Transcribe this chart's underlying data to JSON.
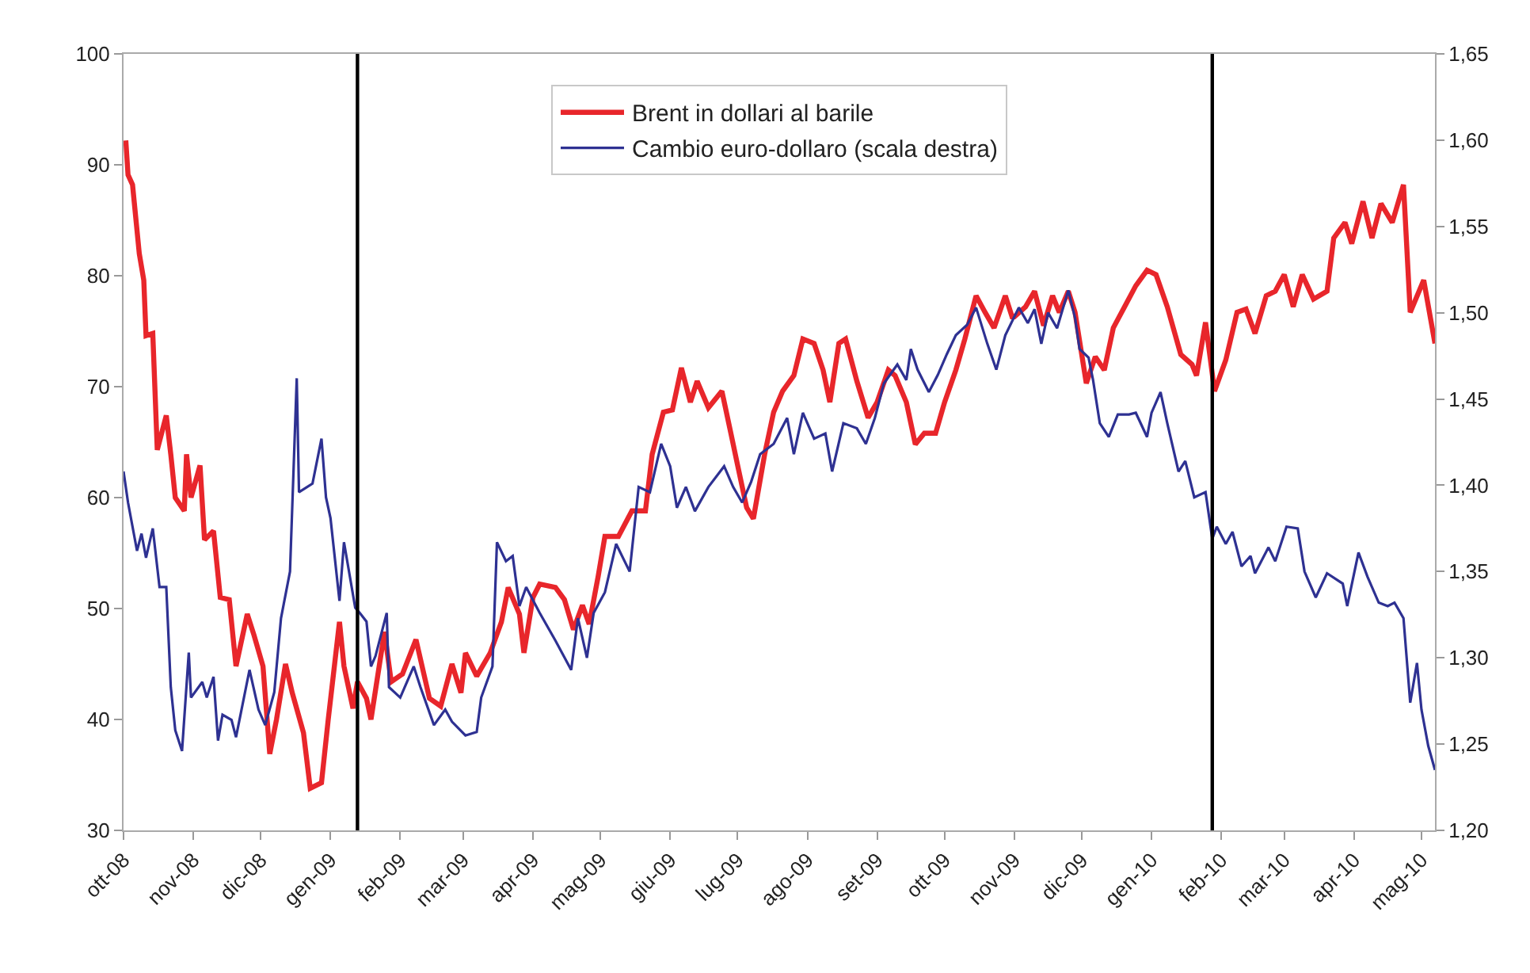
{
  "chart_data": {
    "type": "line",
    "xlim": [
      "2008-10-01",
      "2010-05-07"
    ],
    "xticks": [
      {
        "value": "2008-10-01",
        "label": "ott-08"
      },
      {
        "value": "2008-11-01",
        "label": "nov-08"
      },
      {
        "value": "2008-12-01",
        "label": "dic-08"
      },
      {
        "value": "2009-01-01",
        "label": "gen-09"
      },
      {
        "value": "2009-02-01",
        "label": "feb-09"
      },
      {
        "value": "2009-03-01",
        "label": "mar-09"
      },
      {
        "value": "2009-04-01",
        "label": "apr-09"
      },
      {
        "value": "2009-05-01",
        "label": "mag-09"
      },
      {
        "value": "2009-06-01",
        "label": "giu-09"
      },
      {
        "value": "2009-07-01",
        "label": "lug-09"
      },
      {
        "value": "2009-08-01",
        "label": "ago-09"
      },
      {
        "value": "2009-09-01",
        "label": "set-09"
      },
      {
        "value": "2009-10-01",
        "label": "ott-09"
      },
      {
        "value": "2009-11-01",
        "label": "nov-09"
      },
      {
        "value": "2009-12-01",
        "label": "dic-09"
      },
      {
        "value": "2010-01-01",
        "label": "gen-10"
      },
      {
        "value": "2010-02-01",
        "label": "feb-10"
      },
      {
        "value": "2010-03-01",
        "label": "mar-10"
      },
      {
        "value": "2010-04-01",
        "label": "apr-10"
      },
      {
        "value": "2010-05-01",
        "label": "mag-10"
      }
    ],
    "ylim": [
      30,
      100
    ],
    "yticks": [
      30,
      40,
      50,
      60,
      70,
      80,
      90,
      100
    ],
    "y2lim": [
      1.2,
      1.65
    ],
    "y2ticks": [
      {
        "value": 1.2,
        "label": "1,20"
      },
      {
        "value": 1.25,
        "label": "1,25"
      },
      {
        "value": 1.3,
        "label": "1,30"
      },
      {
        "value": 1.35,
        "label": "1,35"
      },
      {
        "value": 1.4,
        "label": "1,40"
      },
      {
        "value": 1.45,
        "label": "1,45"
      },
      {
        "value": 1.5,
        "label": "1,50"
      },
      {
        "value": 1.55,
        "label": "1,55"
      },
      {
        "value": 1.6,
        "label": "1,60"
      },
      {
        "value": 1.65,
        "label": "1,65"
      }
    ],
    "grid": false,
    "legend": "top",
    "marker": "none",
    "line_style": "solid",
    "ref_lines": [
      {
        "axis": "x",
        "value": "2009-01-13",
        "label": null,
        "color": "#000000"
      },
      {
        "axis": "x",
        "value": "2010-01-28",
        "label": null,
        "color": "#000000"
      }
    ],
    "series": [
      {
        "name": "Brent in dollari al barile",
        "color": "#e8262b",
        "x": [
          "2008-10-02",
          "2008-10-03",
          "2008-10-05",
          "2008-10-08",
          "2008-10-10",
          "2008-10-11",
          "2008-10-14",
          "2008-10-16",
          "2008-10-20",
          "2008-10-22",
          "2008-10-24",
          "2008-10-28",
          "2008-10-29",
          "2008-10-31",
          "2008-11-04",
          "2008-11-06",
          "2008-11-10",
          "2008-11-13",
          "2008-11-17",
          "2008-11-20",
          "2008-11-25",
          "2008-11-28",
          "2008-12-02",
          "2008-12-05",
          "2008-12-08",
          "2008-12-12",
          "2008-12-15",
          "2008-12-20",
          "2008-12-23",
          "2008-12-28",
          "2008-12-31",
          "2009-01-05",
          "2009-01-07",
          "2009-01-11",
          "2009-01-13",
          "2009-01-17",
          "2009-01-19",
          "2009-01-25",
          "2009-01-28",
          "2009-02-02",
          "2009-02-08",
          "2009-02-14",
          "2009-02-19",
          "2009-02-24",
          "2009-02-28",
          "2009-03-02",
          "2009-03-07",
          "2009-03-13",
          "2009-03-18",
          "2009-03-21",
          "2009-03-26",
          "2009-03-28",
          "2009-04-01",
          "2009-04-04",
          "2009-04-11",
          "2009-04-15",
          "2009-04-19",
          "2009-04-23",
          "2009-04-26",
          "2009-04-30",
          "2009-05-03",
          "2009-05-09",
          "2009-05-15",
          "2009-05-21",
          "2009-05-24",
          "2009-05-29",
          "2009-06-02",
          "2009-06-06",
          "2009-06-10",
          "2009-06-13",
          "2009-06-18",
          "2009-06-24",
          "2009-06-28",
          "2009-07-01",
          "2009-07-05",
          "2009-07-08",
          "2009-07-13",
          "2009-07-17",
          "2009-07-21",
          "2009-07-26",
          "2009-07-30",
          "2009-08-04",
          "2009-08-08",
          "2009-08-11",
          "2009-08-15",
          "2009-08-18",
          "2009-08-23",
          "2009-08-28",
          "2009-09-01",
          "2009-09-06",
          "2009-09-09",
          "2009-09-14",
          "2009-09-18",
          "2009-09-22",
          "2009-09-27",
          "2009-10-01",
          "2009-10-06",
          "2009-10-10",
          "2009-10-15",
          "2009-10-19",
          "2009-10-23",
          "2009-10-28",
          "2009-10-31",
          "2009-11-01",
          "2009-11-06",
          "2009-11-10",
          "2009-11-14",
          "2009-11-18",
          "2009-11-21",
          "2009-11-25",
          "2009-11-28",
          "2009-12-03",
          "2009-12-07",
          "2009-12-11",
          "2009-12-15",
          "2009-12-20",
          "2009-12-25",
          "2009-12-30",
          "2010-01-03",
          "2010-01-08",
          "2010-01-14",
          "2010-01-19",
          "2010-01-21",
          "2010-01-25",
          "2010-01-29",
          "2010-02-03",
          "2010-02-08",
          "2010-02-12",
          "2010-02-16",
          "2010-02-21",
          "2010-02-25",
          "2010-03-01",
          "2010-03-05",
          "2010-03-09",
          "2010-03-14",
          "2010-03-20",
          "2010-03-23",
          "2010-03-28",
          "2010-03-31",
          "2010-04-05",
          "2010-04-09",
          "2010-04-13",
          "2010-04-18",
          "2010-04-23",
          "2010-04-26",
          "2010-05-02",
          "2010-05-07"
        ],
        "values": [
          92.2,
          89.1,
          88.2,
          82,
          79.6,
          74.6,
          74.8,
          64.3,
          67.4,
          63.9,
          60,
          58.8,
          63.9,
          60,
          62.9,
          56.2,
          57,
          51,
          50.8,
          44.8,
          49.5,
          47.6,
          44.8,
          36.9,
          40,
          45,
          42.4,
          38.8,
          33.8,
          34.3,
          40,
          48.8,
          44.8,
          41,
          43.4,
          41.9,
          40,
          47.9,
          43.4,
          44.1,
          47.2,
          41.9,
          41.2,
          45,
          42.4,
          46,
          43.9,
          46,
          48.8,
          51.9,
          49.5,
          46,
          51,
          52.2,
          51.9,
          50.8,
          48.1,
          50.3,
          48.6,
          52.9,
          56.5,
          56.5,
          58.8,
          58.8,
          63.9,
          67.7,
          67.9,
          71.7,
          68.6,
          70.5,
          68.1,
          69.6,
          65.8,
          62.9,
          59.1,
          58.1,
          63.9,
          67.7,
          69.6,
          71,
          74.3,
          73.9,
          71.5,
          68.6,
          73.9,
          74.3,
          70.5,
          67.2,
          68.6,
          71.5,
          71,
          68.6,
          64.8,
          65.8,
          65.8,
          68.6,
          71.5,
          74.3,
          78.2,
          76.7,
          75.3,
          78.2,
          76.3,
          76.3,
          77.2,
          78.6,
          75.5,
          78.2,
          76.7,
          78.6,
          76.7,
          70.3,
          72.7,
          71.5,
          75.3,
          77.2,
          79.1,
          80.5,
          80.1,
          77.2,
          72.9,
          72,
          71,
          75.8,
          69.6,
          72.4,
          76.7,
          77,
          74.8,
          78.2,
          78.6,
          80.1,
          77.2,
          80.1,
          77.9,
          78.6,
          83.4,
          84.8,
          82.9,
          86.7,
          83.4,
          86.5,
          84.8,
          88.2,
          76.7,
          79.6,
          73.9
        ]
      },
      {
        "name": "Cambio euro-dollaro (scala destra)",
        "color": "#2e3192",
        "axis": "y2",
        "x": [
          "2008-10-01",
          "2008-10-03",
          "2008-10-07",
          "2008-10-09",
          "2008-10-11",
          "2008-10-14",
          "2008-10-17",
          "2008-10-20",
          "2008-10-22",
          "2008-10-24",
          "2008-10-27",
          "2008-10-30",
          "2008-10-31",
          "2008-11-05",
          "2008-11-07",
          "2008-11-10",
          "2008-11-12",
          "2008-11-14",
          "2008-11-18",
          "2008-11-20",
          "2008-11-26",
          "2008-11-30",
          "2008-12-03",
          "2008-12-07",
          "2008-12-10",
          "2008-12-14",
          "2008-12-17",
          "2008-12-18",
          "2008-12-24",
          "2008-12-28",
          "2008-12-30",
          "2009-01-01",
          "2009-01-05",
          "2009-01-07",
          "2009-01-12",
          "2009-01-14",
          "2009-01-17",
          "2009-01-19",
          "2009-01-21",
          "2009-01-26",
          "2009-01-27",
          "2009-02-01",
          "2009-02-07",
          "2009-02-10",
          "2009-02-16",
          "2009-02-21",
          "2009-02-24",
          "2009-03-02",
          "2009-03-07",
          "2009-03-09",
          "2009-03-14",
          "2009-03-16",
          "2009-03-20",
          "2009-03-23",
          "2009-03-26",
          "2009-03-29",
          "2009-04-04",
          "2009-04-11",
          "2009-04-18",
          "2009-04-21",
          "2009-04-25",
          "2009-04-28",
          "2009-05-03",
          "2009-05-08",
          "2009-05-14",
          "2009-05-18",
          "2009-05-23",
          "2009-05-28",
          "2009-06-01",
          "2009-06-04",
          "2009-06-08",
          "2009-06-12",
          "2009-06-18",
          "2009-06-25",
          "2009-06-29",
          "2009-07-03",
          "2009-07-07",
          "2009-07-11",
          "2009-07-17",
          "2009-07-23",
          "2009-07-26",
          "2009-07-30",
          "2009-08-04",
          "2009-08-09",
          "2009-08-12",
          "2009-08-17",
          "2009-08-23",
          "2009-08-27",
          "2009-08-31",
          "2009-09-04",
          "2009-09-10",
          "2009-09-14",
          "2009-09-16",
          "2009-09-19",
          "2009-09-24",
          "2009-09-28",
          "2009-10-02",
          "2009-10-06",
          "2009-10-11",
          "2009-10-15",
          "2009-10-20",
          "2009-10-24",
          "2009-10-28",
          "2009-11-03",
          "2009-11-07",
          "2009-11-10",
          "2009-11-13",
          "2009-11-16",
          "2009-11-20",
          "2009-11-25",
          "2009-11-28",
          "2009-11-30",
          "2009-12-04",
          "2009-12-06",
          "2009-12-09",
          "2009-12-13",
          "2009-12-17",
          "2009-12-22",
          "2009-12-25",
          "2009-12-30",
          "2010-01-01",
          "2010-01-05",
          "2010-01-08",
          "2010-01-13",
          "2010-01-16",
          "2010-01-20",
          "2010-01-25",
          "2010-01-28",
          "2010-01-30",
          "2010-02-03",
          "2010-02-06",
          "2010-02-10",
          "2010-02-14",
          "2010-02-16",
          "2010-02-22",
          "2010-02-25",
          "2010-03-02",
          "2010-03-07",
          "2010-03-10",
          "2010-03-15",
          "2010-03-20",
          "2010-03-27",
          "2010-03-29",
          "2010-04-03",
          "2010-04-07",
          "2010-04-12",
          "2010-04-16",
          "2010-04-19",
          "2010-04-23",
          "2010-04-26",
          "2010-04-29",
          "2010-05-01",
          "2010-05-04",
          "2010-05-07"
        ],
        "values": [
          1.408,
          1.39,
          1.362,
          1.372,
          1.358,
          1.375,
          1.341,
          1.341,
          1.283,
          1.258,
          1.246,
          1.303,
          1.277,
          1.286,
          1.277,
          1.289,
          1.252,
          1.267,
          1.264,
          1.254,
          1.293,
          1.27,
          1.261,
          1.28,
          1.323,
          1.35,
          1.462,
          1.396,
          1.401,
          1.427,
          1.393,
          1.381,
          1.333,
          1.367,
          1.329,
          1.326,
          1.321,
          1.295,
          1.301,
          1.326,
          1.283,
          1.277,
          1.295,
          1.283,
          1.261,
          1.27,
          1.263,
          1.255,
          1.257,
          1.277,
          1.295,
          1.367,
          1.356,
          1.359,
          1.33,
          1.341,
          1.326,
          1.31,
          1.293,
          1.323,
          1.3,
          1.326,
          1.338,
          1.366,
          1.35,
          1.399,
          1.396,
          1.424,
          1.411,
          1.387,
          1.399,
          1.385,
          1.399,
          1.411,
          1.399,
          1.39,
          1.402,
          1.418,
          1.424,
          1.439,
          1.418,
          1.442,
          1.427,
          1.43,
          1.408,
          1.436,
          1.433,
          1.424,
          1.439,
          1.459,
          1.47,
          1.461,
          1.479,
          1.467,
          1.454,
          1.464,
          1.476,
          1.487,
          1.493,
          1.503,
          1.482,
          1.467,
          1.487,
          1.503,
          1.494,
          1.502,
          1.482,
          1.5,
          1.491,
          1.513,
          1.497,
          1.479,
          1.474,
          1.461,
          1.436,
          1.428,
          1.441,
          1.441,
          1.442,
          1.428,
          1.442,
          1.454,
          1.436,
          1.408,
          1.414,
          1.393,
          1.396,
          1.369,
          1.376,
          1.366,
          1.373,
          1.353,
          1.359,
          1.349,
          1.364,
          1.356,
          1.376,
          1.375,
          1.35,
          1.335,
          1.349,
          1.343,
          1.33,
          1.361,
          1.347,
          1.332,
          1.33,
          1.332,
          1.323,
          1.274,
          1.297,
          1.27,
          1.249,
          1.235
        ]
      }
    ]
  }
}
